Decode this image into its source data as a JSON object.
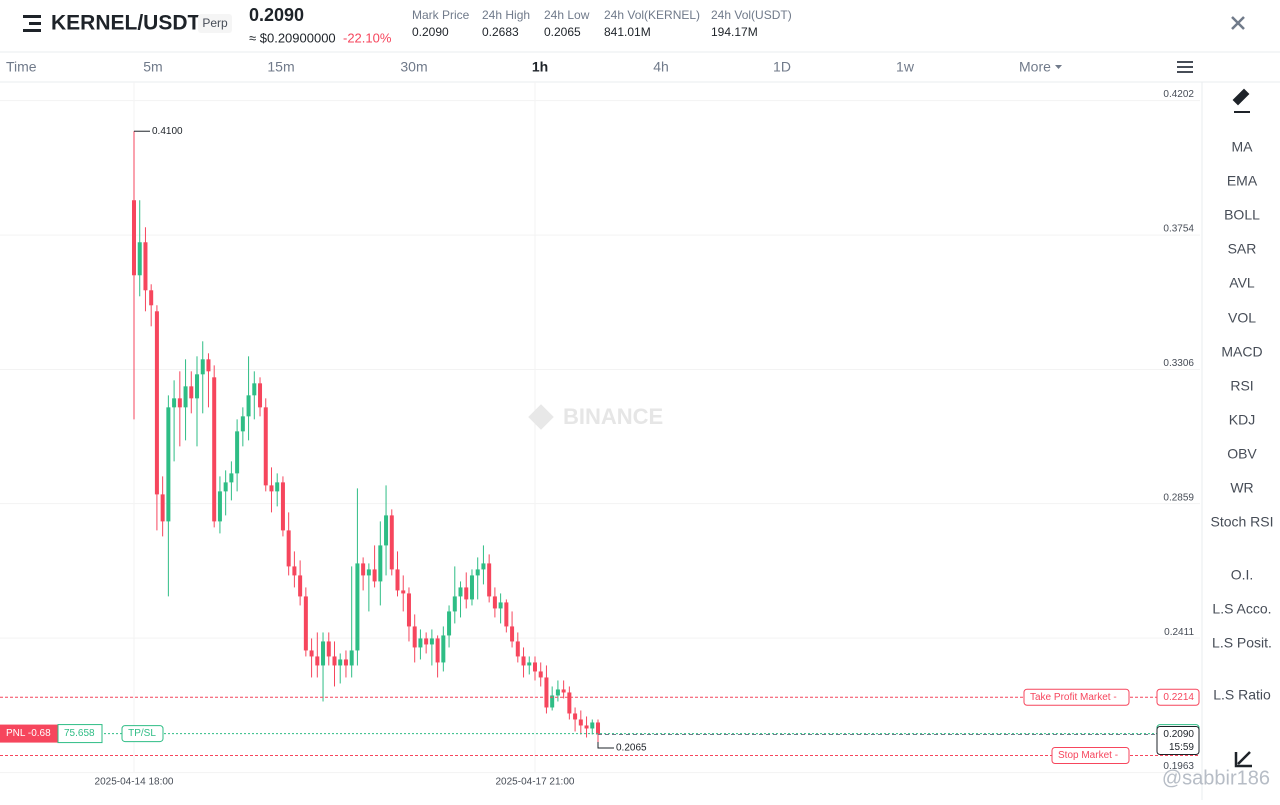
{
  "header": {
    "symbol": "KERNEL/USDT",
    "tag": "Perp",
    "price": "0.2090",
    "usd_price": "≈ $0.20900000",
    "change": "-22.10%",
    "stats": [
      {
        "label": "Mark Price",
        "value": "0.2090"
      },
      {
        "label": "24h High",
        "value": "0.2683"
      },
      {
        "label": "24h Low",
        "value": "0.2065"
      },
      {
        "label": "24h Vol(KERNEL)",
        "value": "841.01M"
      },
      {
        "label": "24h Vol(USDT)",
        "value": "194.17M"
      }
    ]
  },
  "intervals": [
    {
      "label": "Time",
      "selected": false
    },
    {
      "label": "5m",
      "selected": false
    },
    {
      "label": "15m",
      "selected": false
    },
    {
      "label": "30m",
      "selected": false
    },
    {
      "label": "1h",
      "selected": true
    },
    {
      "label": "4h",
      "selected": false
    },
    {
      "label": "1D",
      "selected": false
    },
    {
      "label": "1w",
      "selected": false
    },
    {
      "label": "More",
      "selected": false
    }
  ],
  "indicators": [
    "MA",
    "EMA",
    "BOLL",
    "SAR",
    "AVL",
    "VOL",
    "MACD",
    "RSI",
    "KDJ",
    "OBV",
    "WR",
    "Stoch RSI",
    "O.I.",
    "L.S Acco.",
    "L.S Posit.",
    "L.S Ratio"
  ],
  "watermark": "BINANCE",
  "credit": "@sabbir186",
  "chart_data": {
    "type": "candlestick",
    "up_color": "#2ebd85",
    "down_color": "#f6465d",
    "grid": true,
    "ylim": [
      0.1965,
      0.4264
    ],
    "yticks": [
      0.4202,
      0.3754,
      0.3306,
      0.2859,
      0.2411,
      0.1963
    ],
    "high_label": "0.4100",
    "low_label": "0.2065",
    "x": [
      "2025-04-14 18:00",
      null,
      null,
      null,
      null,
      null,
      null,
      null,
      null,
      null,
      null,
      null,
      null,
      null,
      null,
      null,
      null,
      null,
      null,
      null,
      null,
      null,
      null,
      null,
      null,
      null,
      null,
      null,
      null,
      null,
      null,
      null,
      null,
      null,
      null,
      null,
      null,
      null,
      null,
      null,
      null,
      null,
      null,
      null,
      null,
      null,
      null,
      null,
      null,
      null,
      null,
      null,
      null,
      null,
      null,
      null,
      null,
      null,
      null,
      null,
      null,
      null,
      null,
      null,
      null,
      null,
      null,
      null,
      null,
      null,
      "2025-04-17 21:00",
      null,
      null,
      null,
      null,
      null,
      null,
      null,
      null,
      null,
      null,
      null
    ],
    "candles": [
      [
        0.387,
        0.41,
        0.314,
        0.362
      ],
      [
        0.362,
        0.387,
        0.355,
        0.373
      ],
      [
        0.373,
        0.378,
        0.35,
        0.357
      ],
      [
        0.357,
        0.359,
        0.345,
        0.352
      ],
      [
        0.35,
        0.352,
        0.277,
        0.289
      ],
      [
        0.289,
        0.295,
        0.275,
        0.28
      ],
      [
        0.28,
        0.322,
        0.255,
        0.318
      ],
      [
        0.318,
        0.327,
        0.3,
        0.321
      ],
      [
        0.321,
        0.33,
        0.305,
        0.318
      ],
      [
        0.318,
        0.334,
        0.307,
        0.325
      ],
      [
        0.325,
        0.33,
        0.316,
        0.321
      ],
      [
        0.321,
        0.335,
        0.305,
        0.329
      ],
      [
        0.329,
        0.34,
        0.316,
        0.334
      ],
      [
        0.334,
        0.336,
        0.318,
        0.33
      ],
      [
        0.328,
        0.332,
        0.278,
        0.28
      ],
      [
        0.28,
        0.295,
        0.276,
        0.29
      ],
      [
        0.29,
        0.297,
        0.282,
        0.293
      ],
      [
        0.293,
        0.3,
        0.287,
        0.296
      ],
      [
        0.296,
        0.314,
        0.29,
        0.31
      ],
      [
        0.31,
        0.318,
        0.305,
        0.315
      ],
      [
        0.315,
        0.335,
        0.307,
        0.322
      ],
      [
        0.322,
        0.33,
        0.314,
        0.326
      ],
      [
        0.326,
        0.328,
        0.315,
        0.318
      ],
      [
        0.318,
        0.321,
        0.29,
        0.292
      ],
      [
        0.292,
        0.298,
        0.283,
        0.29
      ],
      [
        0.29,
        0.296,
        0.285,
        0.293
      ],
      [
        0.293,
        0.295,
        0.275,
        0.277
      ],
      [
        0.277,
        0.283,
        0.262,
        0.265
      ],
      [
        0.265,
        0.27,
        0.258,
        0.262
      ],
      [
        0.262,
        0.267,
        0.252,
        0.255
      ],
      [
        0.255,
        0.258,
        0.235,
        0.237
      ],
      [
        0.237,
        0.241,
        0.228,
        0.235
      ],
      [
        0.235,
        0.243,
        0.228,
        0.232
      ],
      [
        0.232,
        0.243,
        0.22,
        0.24
      ],
      [
        0.24,
        0.243,
        0.232,
        0.235
      ],
      [
        0.235,
        0.24,
        0.225,
        0.232
      ],
      [
        0.232,
        0.236,
        0.226,
        0.234
      ],
      [
        0.234,
        0.237,
        0.228,
        0.232
      ],
      [
        0.232,
        0.265,
        0.228,
        0.237
      ],
      [
        0.237,
        0.291,
        0.232,
        0.266
      ],
      [
        0.266,
        0.268,
        0.257,
        0.262
      ],
      [
        0.262,
        0.266,
        0.25,
        0.264
      ],
      [
        0.264,
        0.272,
        0.258,
        0.26
      ],
      [
        0.26,
        0.28,
        0.252,
        0.272
      ],
      [
        0.272,
        0.292,
        0.262,
        0.282
      ],
      [
        0.282,
        0.284,
        0.262,
        0.264
      ],
      [
        0.264,
        0.27,
        0.255,
        0.257
      ],
      [
        0.257,
        0.262,
        0.25,
        0.256
      ],
      [
        0.256,
        0.258,
        0.24,
        0.245
      ],
      [
        0.245,
        0.249,
        0.233,
        0.238
      ],
      [
        0.238,
        0.244,
        0.234,
        0.241
      ],
      [
        0.241,
        0.243,
        0.236,
        0.239
      ],
      [
        0.239,
        0.244,
        0.232,
        0.241
      ],
      [
        0.241,
        0.242,
        0.228,
        0.233
      ],
      [
        0.233,
        0.245,
        0.23,
        0.242
      ],
      [
        0.242,
        0.252,
        0.238,
        0.25
      ],
      [
        0.25,
        0.265,
        0.246,
        0.255
      ],
      [
        0.255,
        0.26,
        0.248,
        0.258
      ],
      [
        0.258,
        0.263,
        0.251,
        0.254
      ],
      [
        0.254,
        0.264,
        0.252,
        0.262
      ],
      [
        0.262,
        0.268,
        0.254,
        0.264
      ],
      [
        0.264,
        0.272,
        0.259,
        0.266
      ],
      [
        0.266,
        0.269,
        0.253,
        0.255
      ],
      [
        0.255,
        0.258,
        0.248,
        0.251
      ],
      [
        0.251,
        0.256,
        0.246,
        0.253
      ],
      [
        0.253,
        0.254,
        0.243,
        0.245
      ],
      [
        0.245,
        0.25,
        0.238,
        0.24
      ],
      [
        0.24,
        0.243,
        0.233,
        0.235
      ],
      [
        0.235,
        0.238,
        0.228,
        0.232
      ],
      [
        0.232,
        0.235,
        0.229,
        0.233
      ],
      [
        0.233,
        0.235,
        0.227,
        0.23
      ],
      [
        0.23,
        0.233,
        0.225,
        0.228
      ],
      [
        0.228,
        0.232,
        0.216,
        0.218
      ],
      [
        0.218,
        0.225,
        0.217,
        0.222
      ],
      [
        0.222,
        0.227,
        0.22,
        0.224
      ],
      [
        0.224,
        0.227,
        0.221,
        0.223
      ],
      [
        0.223,
        0.225,
        0.214,
        0.216
      ],
      [
        0.216,
        0.218,
        0.21,
        0.214
      ],
      [
        0.214,
        0.217,
        0.209,
        0.212
      ],
      [
        0.212,
        0.215,
        0.208,
        0.211
      ],
      [
        0.211,
        0.214,
        0.209,
        0.213
      ],
      [
        0.213,
        0.214,
        0.2065,
        0.209
      ]
    ],
    "take_profit": {
      "label": "Take Profit Market  -",
      "price": 0.2214
    },
    "stop_loss": {
      "label": "Stop Market  -",
      "price": 0.202
    },
    "position": {
      "pnl": "PNL -0.68",
      "size": "75.658",
      "tpsl": "TP/SL",
      "price": 0.2093
    },
    "current_price": {
      "value": 0.209,
      "label": "0.2090",
      "countdown": "15:59"
    }
  }
}
